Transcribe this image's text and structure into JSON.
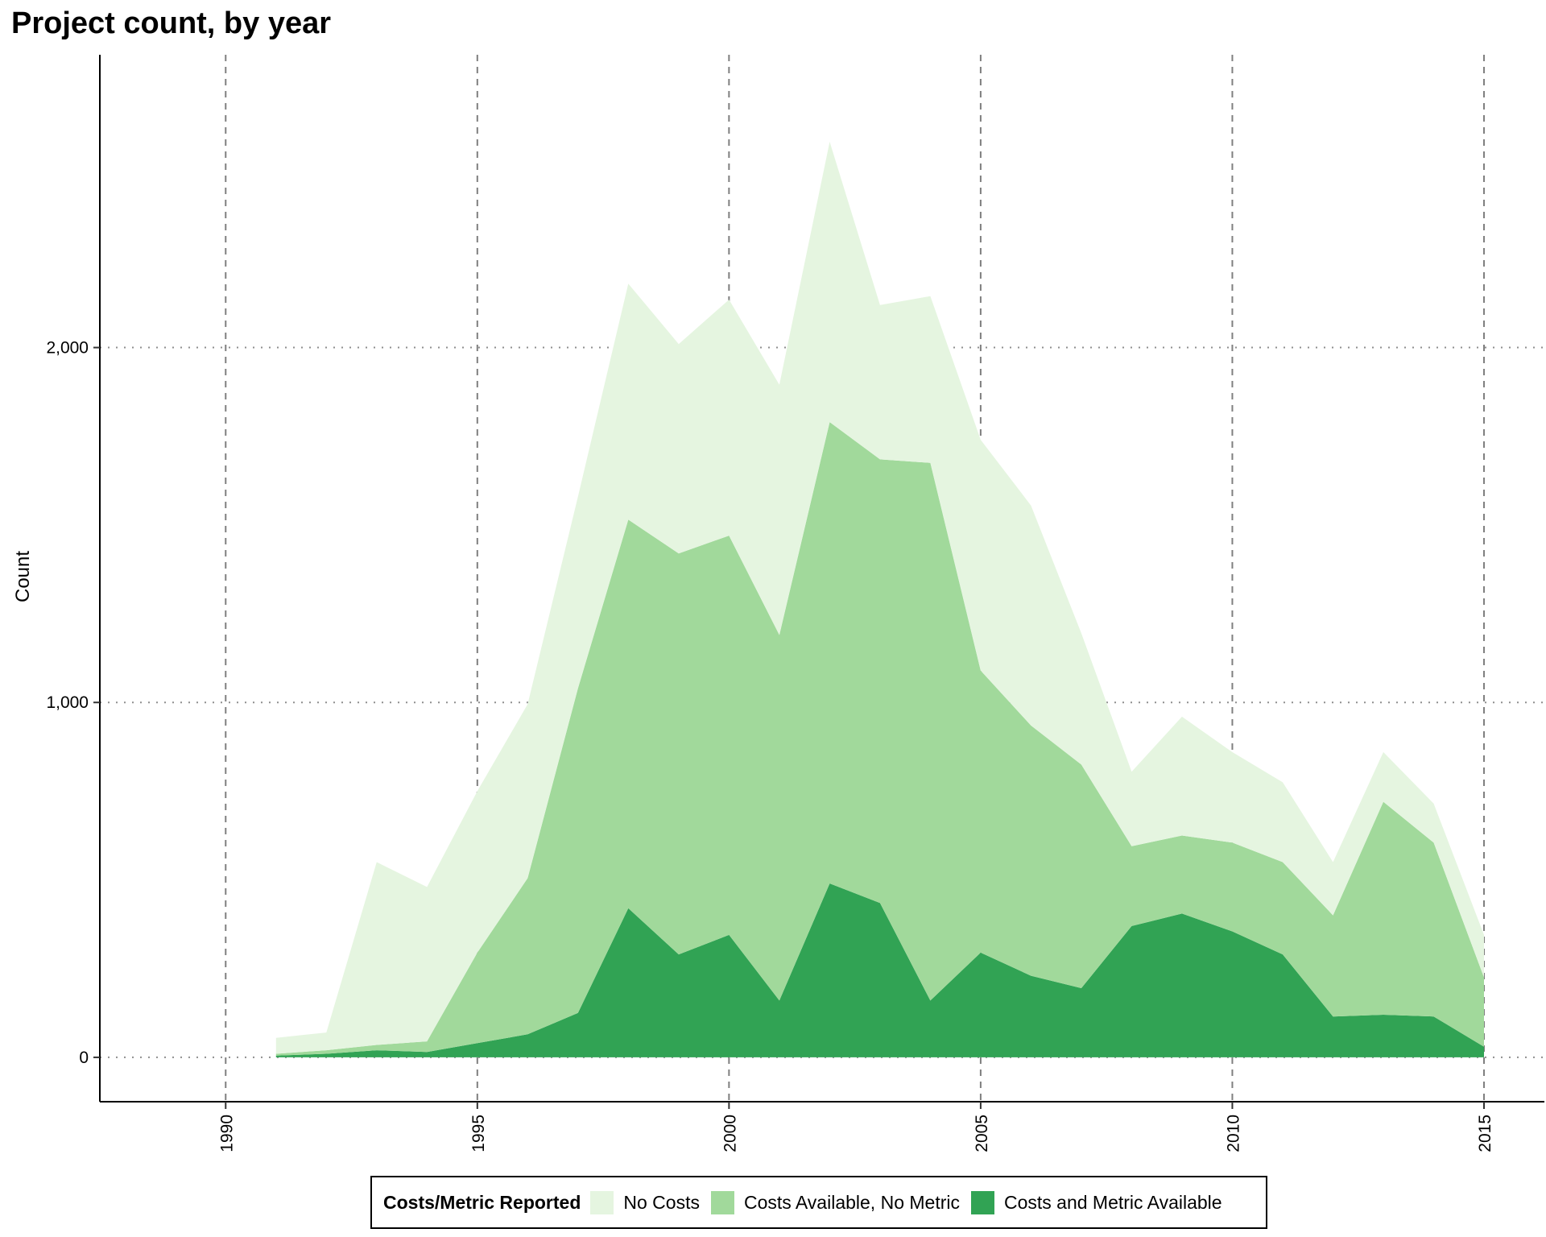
{
  "chart_data": {
    "type": "area",
    "stacked": true,
    "title": "Project count, by year",
    "xlabel": "",
    "ylabel": "Count",
    "xlim": [
      1987.5,
      2016.2
    ],
    "ylim": [
      -125,
      2825
    ],
    "x_ticks": [
      1990,
      1995,
      2000,
      2005,
      2010,
      2015
    ],
    "x_tick_labels": [
      "1990",
      "1995",
      "2000",
      "2005",
      "2010",
      "2015"
    ],
    "y_ticks": [
      0,
      1000,
      2000
    ],
    "y_tick_labels": [
      "0",
      "1,000",
      "2,000"
    ],
    "grid": {
      "x": "dashed",
      "y": "dotted"
    },
    "x": [
      1991,
      1992,
      1993,
      1994,
      1995,
      1996,
      1997,
      1998,
      1999,
      2000,
      2001,
      2002,
      2003,
      2004,
      2005,
      2006,
      2007,
      2008,
      2009,
      2010,
      2011,
      2012,
      2013,
      2014,
      2015
    ],
    "series": [
      {
        "name": "Costs and Metric Available",
        "color": "#31a354",
        "values": [
          5,
          10,
          20,
          15,
          40,
          65,
          125,
          420,
          290,
          345,
          160,
          490,
          435,
          160,
          295,
          230,
          195,
          370,
          405,
          355,
          290,
          115,
          120,
          115,
          30
        ]
      },
      {
        "name": "Costs Available, No Metric",
        "color": "#a1d99b",
        "values": [
          5,
          10,
          15,
          30,
          255,
          440,
          915,
          1095,
          1130,
          1125,
          1030,
          1300,
          1250,
          1515,
          795,
          705,
          630,
          225,
          220,
          250,
          260,
          285,
          600,
          490,
          195
        ]
      },
      {
        "name": "No Costs",
        "color": "#e5f5e0",
        "values": [
          45,
          50,
          515,
          435,
          455,
          490,
          540,
          665,
          590,
          665,
          705,
          790,
          435,
          470,
          650,
          620,
          370,
          210,
          335,
          255,
          225,
          150,
          140,
          110,
          120
        ]
      }
    ],
    "legend": {
      "title": "Costs/Metric Reported",
      "position": "bottom",
      "items": [
        {
          "label": "No Costs",
          "color": "#e5f5e0"
        },
        {
          "label": "Costs Available, No Metric",
          "color": "#a1d99b"
        },
        {
          "label": "Costs and Metric Available",
          "color": "#31a354"
        }
      ]
    }
  }
}
